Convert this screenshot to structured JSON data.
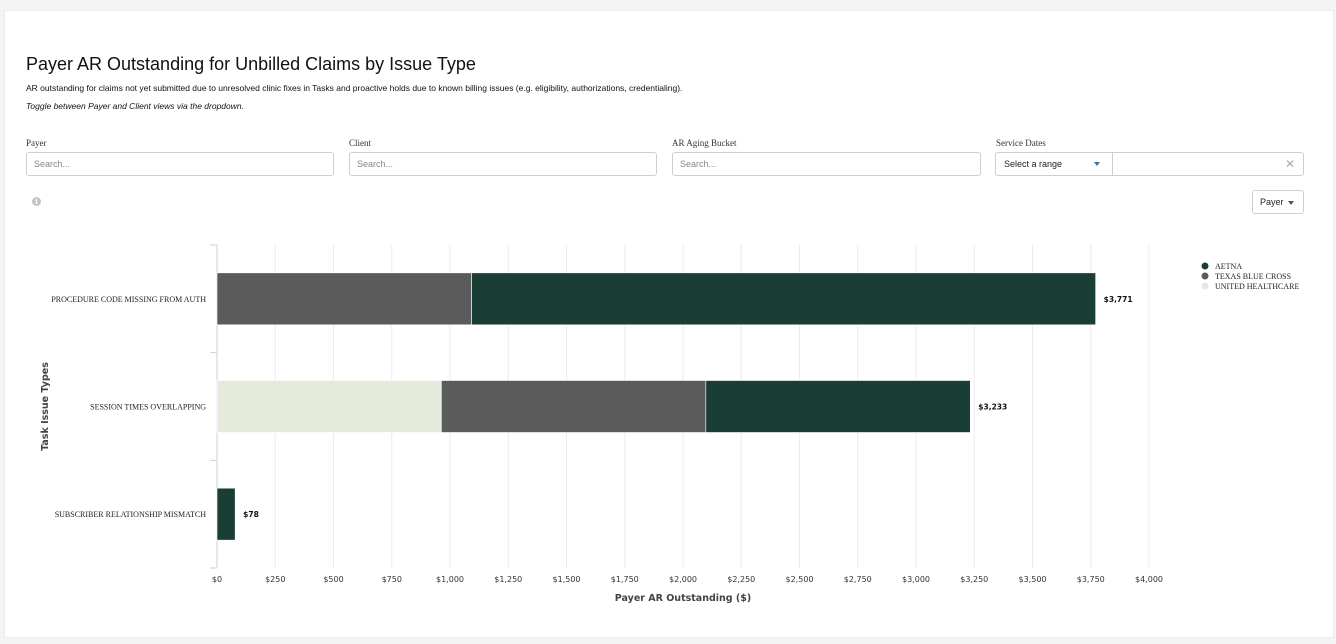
{
  "header": {
    "title": "Payer AR Outstanding for Unbilled Claims by Issue Type",
    "subtitle": "AR outstanding for claims not yet submitted due to unresolved clinic fixes in Tasks and proactive holds due to known billing issues (e.g. eligibility, authorizations, credentialing).",
    "hint": "Toggle between Payer and Client views via the dropdown."
  },
  "filters": {
    "payer": {
      "label": "Payer",
      "placeholder": "Search..."
    },
    "client": {
      "label": "Client",
      "placeholder": "Search..."
    },
    "aging": {
      "label": "AR Aging Bucket",
      "placeholder": "Search..."
    },
    "service_dates": {
      "label": "Service Dates",
      "range_label": "Select a range",
      "clear_symbol": "✕"
    }
  },
  "controls": {
    "info_symbol": "i",
    "view_toggle": "Payer"
  },
  "chart_data": {
    "type": "bar",
    "orientation": "horizontal",
    "stacked": true,
    "title": "Payer AR Outstanding for Unbilled Claims by Issue Type",
    "xlabel": "Payer AR Outstanding ($)",
    "ylabel": "Task Issue Types",
    "xlim": [
      0,
      4000
    ],
    "x_ticks": [
      0,
      250,
      500,
      750,
      1000,
      1250,
      1500,
      1750,
      2000,
      2250,
      2500,
      2750,
      3000,
      3250,
      3500,
      3750,
      4000
    ],
    "x_tick_labels": [
      "$0",
      "$250",
      "$500",
      "$750",
      "$1,000",
      "$1,250",
      "$1,500",
      "$1,750",
      "$2,000",
      "$2,250",
      "$2,500",
      "$2,750",
      "$3,000",
      "$3,250",
      "$3,500",
      "$3,750",
      "$4,000"
    ],
    "grid": true,
    "legend_position": "top-right",
    "categories": [
      "PROCEDURE CODE MISSING FROM AUTH",
      "SESSION TIMES OVERLAPPING",
      "SUBSCRIBER RELATIONSHIP MISMATCH"
    ],
    "stack_order": [
      "UNITED HEALTHCARE",
      "TEXAS BLUE CROSS",
      "AETNA"
    ],
    "series": [
      {
        "name": "AETNA",
        "color": "#1a3e35",
        "values": [
          2678,
          1135,
          78
        ]
      },
      {
        "name": "TEXAS BLUE CROSS",
        "color": "#5b5b5b",
        "values": [
          1093,
          1135,
          0
        ]
      },
      {
        "name": "UNITED HEALTHCARE",
        "color": "#e5ebdb",
        "values": [
          0,
          963,
          0
        ]
      }
    ],
    "totals": [
      3771,
      3233,
      78
    ],
    "total_labels": [
      "$3,771",
      "$3,233",
      "$78"
    ]
  }
}
